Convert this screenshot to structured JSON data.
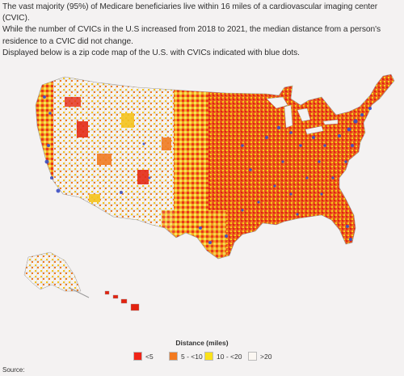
{
  "intro": {
    "line1": "The vast majority (95%) of Medicare beneficiaries live within 16 miles of a cardiovascular imaging center (CVIC).",
    "line2": "While the number of CVICs in the U.S increased from 2018 to 2021, the median distance from a person's residence to a CVIC did not change.",
    "line3": "Displayed below is a zip code map of the U.S. with CVICs indicated with blue dots."
  },
  "legend": {
    "title": "Distance (miles)",
    "items": [
      {
        "label": "<5",
        "color": "#f02418"
      },
      {
        "label": "5 - <10",
        "color": "#f37a1f"
      },
      {
        "label": "10 - <20",
        "color": "#fbe21a"
      },
      {
        "label": ">20",
        "color": "#fbf7f2"
      }
    ]
  },
  "cvic_dot_color": "#3b4fc4",
  "source": "Source:"
}
